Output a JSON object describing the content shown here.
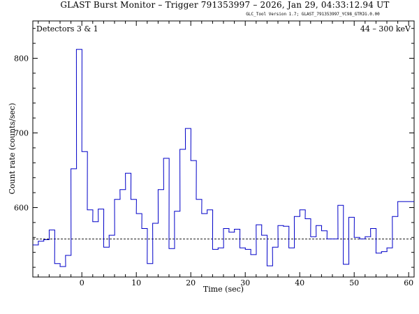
{
  "chart_data": {
    "type": "line",
    "title": "GLAST Burst Monitor  –  Trigger 791353997  –  2026, Jan 29, 04:33:12.94 UT",
    "subtitle": "GLC_Tool Version 1.7; GLAST_791353997_YC98_GTRIG.0.00",
    "annotation_left": "Detectors 3 & 1",
    "annotation_right": "44 – 300 keV",
    "xlabel": "Time (sec)",
    "ylabel": "Count rate (counts/sec)",
    "xlim": [
      -9,
      61
    ],
    "ylim": [
      507,
      850
    ],
    "x_ticks": [
      0,
      10,
      20,
      30,
      40,
      50,
      60
    ],
    "y_ticks": [
      600,
      700,
      800
    ],
    "background_level": 558,
    "series_color": "#0000c8",
    "background_color": "#000000",
    "bin_width_sec": 1.024,
    "bins": {
      "start": [
        -9.0,
        -8.0,
        -7.0,
        -6.0,
        -5.0,
        -4.0,
        -3.0,
        -2.0,
        -1.0,
        0.0,
        1.0,
        2.0,
        3.0,
        4.0,
        5.0,
        6.0,
        7.0,
        8.0,
        9.0,
        10.0,
        11.0,
        12.0,
        13.0,
        14.0,
        15.0,
        16.0,
        17.0,
        18.0,
        19.0,
        20.0,
        21.0,
        22.0,
        23.0,
        24.0,
        25.0,
        26.0,
        27.0,
        28.0,
        29.0,
        30.0,
        31.0,
        32.0,
        33.0,
        34.0,
        35.0,
        36.0,
        37.0,
        38.0,
        39.0,
        40.0,
        41.0,
        42.0,
        43.0,
        44.0,
        45.0,
        46.0,
        47.0,
        48.0,
        49.0,
        50.0,
        51.0,
        52.0,
        53.0,
        54.0,
        55.0,
        56.0,
        57.0,
        58.0,
        59.0,
        60.0
      ],
      "counts": [
        550,
        555,
        557,
        570,
        525,
        521,
        536,
        652,
        812,
        675,
        597,
        581,
        598,
        547,
        563,
        611,
        624,
        646,
        611,
        592,
        572,
        525,
        579,
        624,
        666,
        545,
        595,
        678,
        706,
        663,
        611,
        592,
        597,
        544,
        546,
        572,
        567,
        571,
        546,
        544,
        537,
        577,
        563,
        522,
        547,
        576,
        575,
        546,
        588,
        597,
        585,
        561,
        576,
        569,
        558,
        558,
        603,
        524,
        587,
        560,
        558,
        561,
        572,
        539,
        541,
        546,
        588,
        608,
        608,
        608
      ]
    }
  }
}
